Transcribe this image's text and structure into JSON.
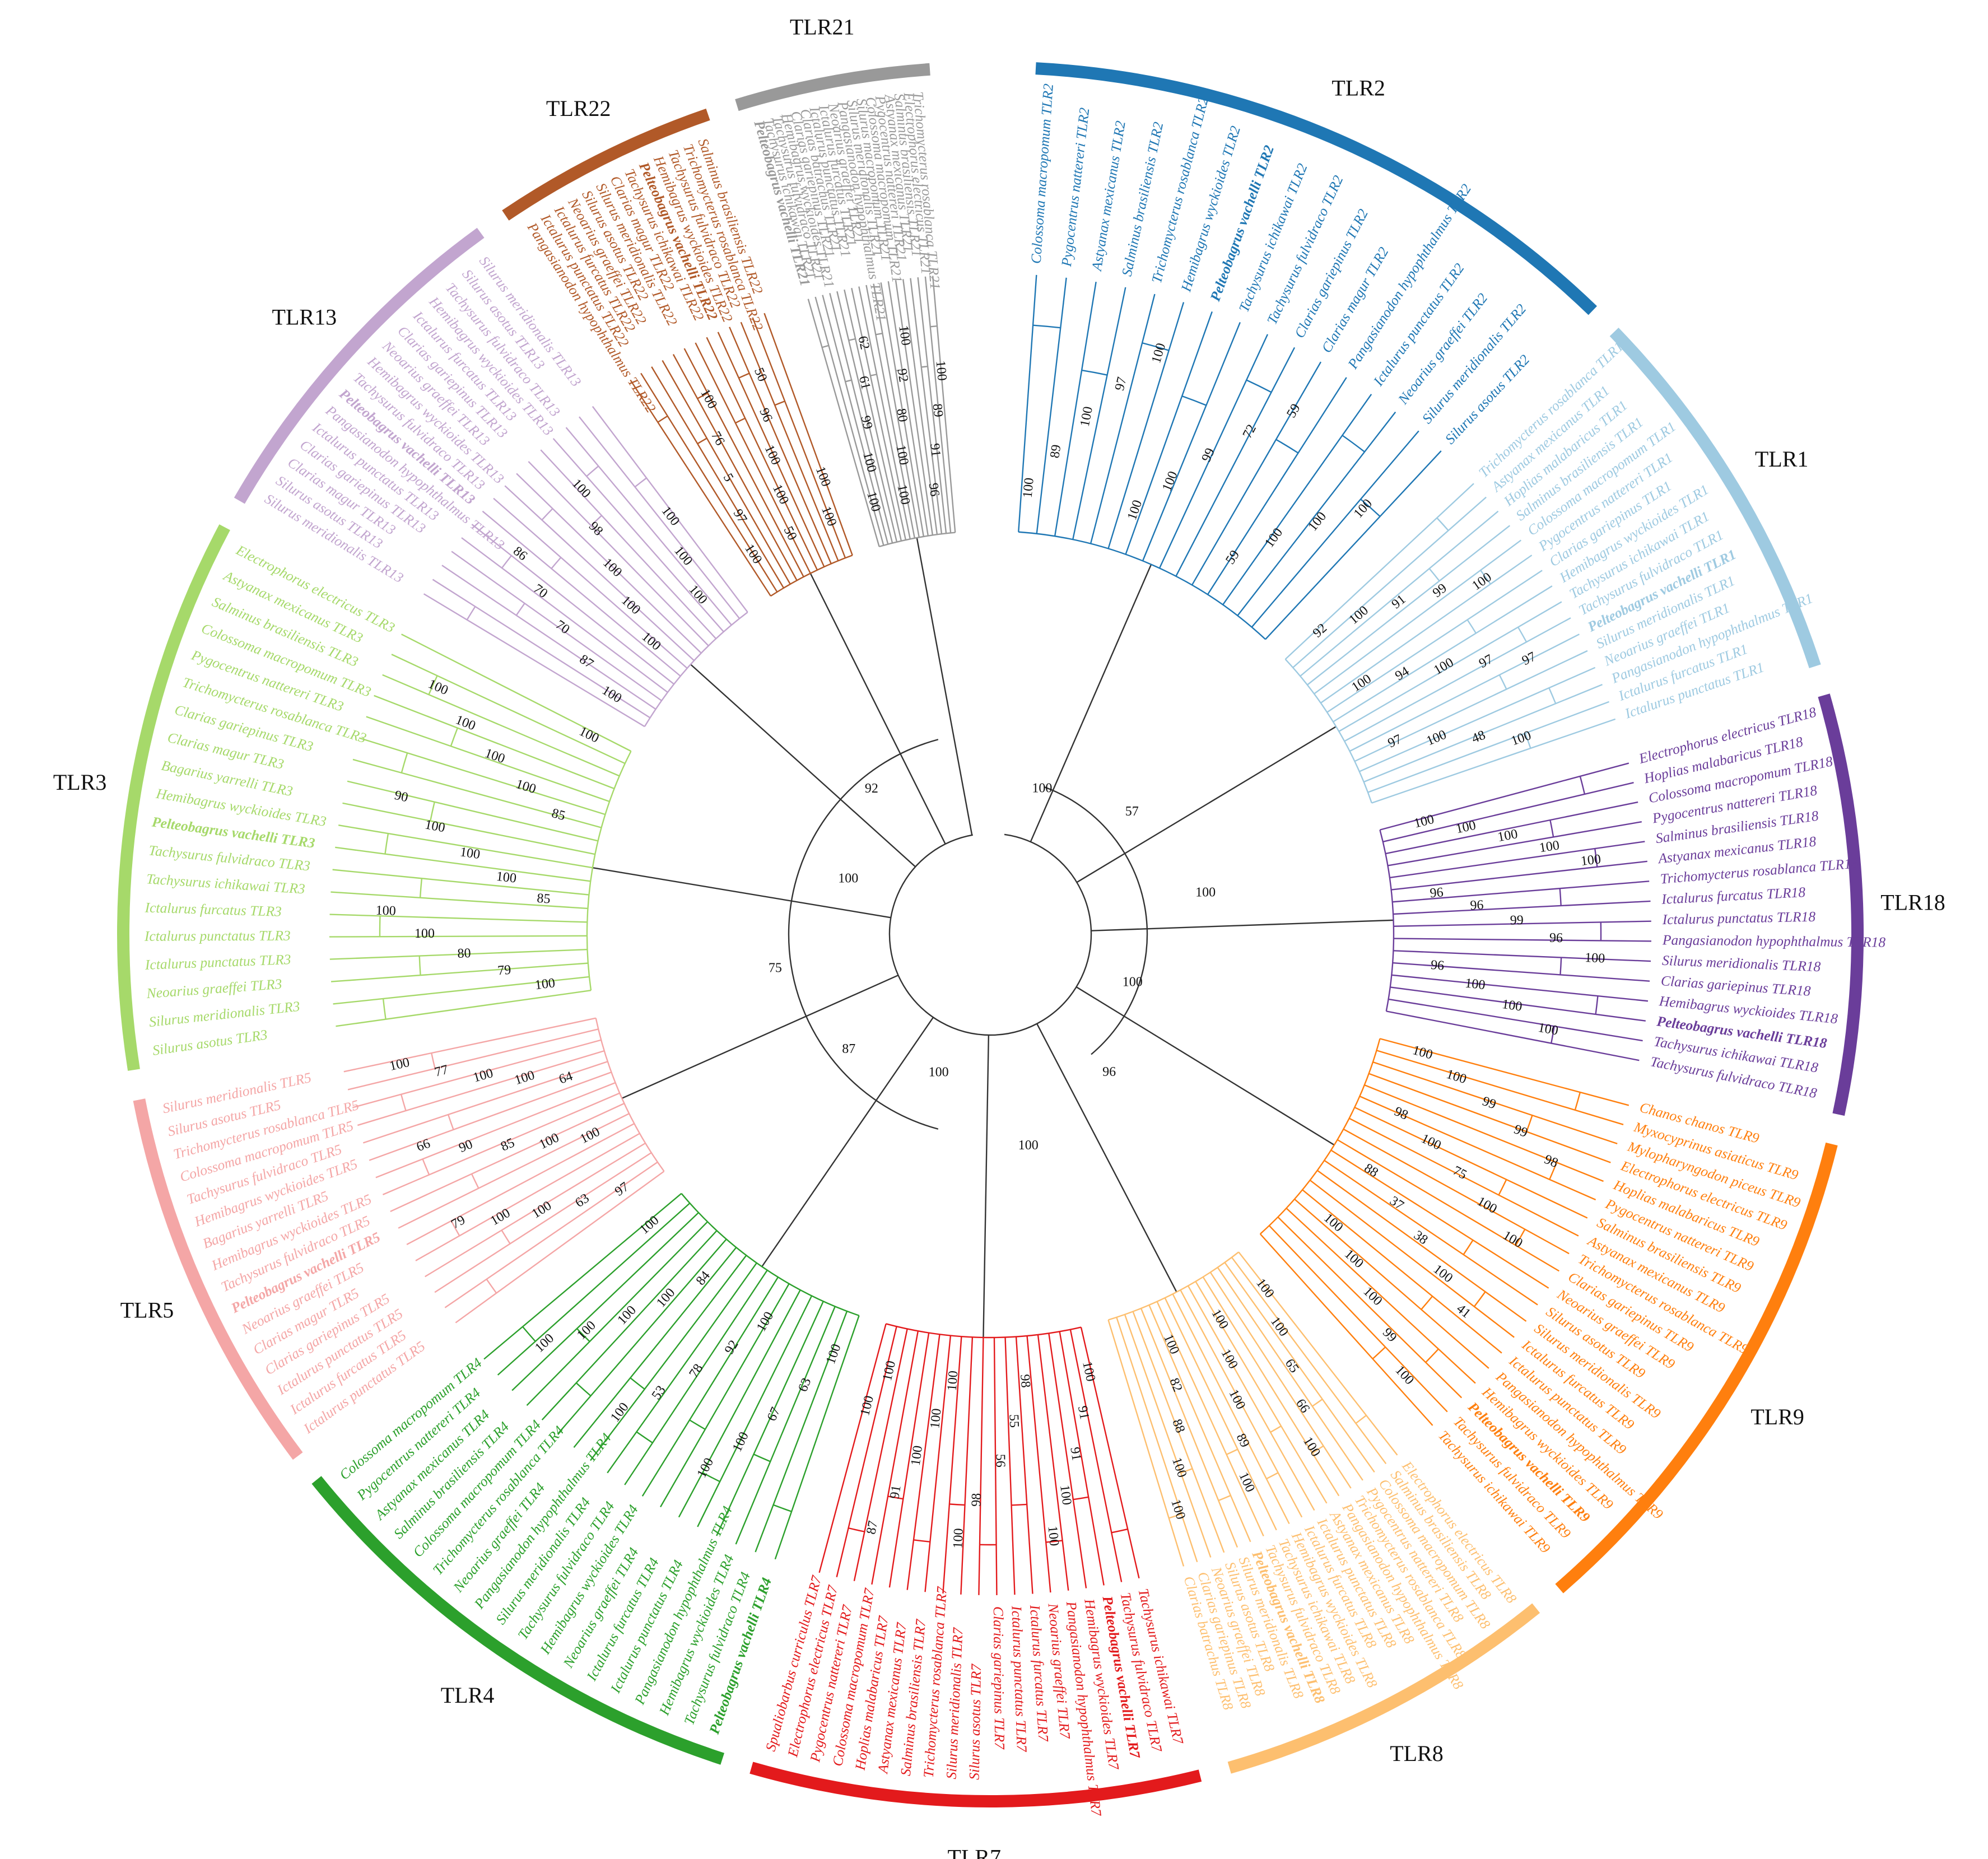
{
  "clades": [
    {
      "id": "tlr2",
      "label": "TLR2",
      "color": "#1f77b4",
      "members": [
        "Colossoma macropomum TLR2",
        "Pygocentrus nattereri TLR2",
        "Astyanax mexicanus TLR2",
        "Salminus brasiliensis TLR2",
        "Trichomycterus rosablanca TLR2",
        "Hemibagrus wyckioides TLR2",
        "Pelteobagrus vachelli TLR2",
        "Tachysurus ichikawai TLR2",
        "Tachysurus fulvidraco TLR2",
        "Clarias gariepinus TLR2",
        "Clarias magur TLR2",
        "Pangasianodon hypophthalmus TLR2",
        "Ictalurus punctatus TLR2",
        "Neoarius graeffei TLR2",
        "Silurus meridionalis TLR2",
        "Silurus asotus TLR2"
      ]
    },
    {
      "id": "tlr1",
      "label": "TLR1",
      "color": "#9ecae1",
      "members": [
        "Trichomycterus rosablanca TLR1",
        "Astyanax mexicanus TLR1",
        "Hoplias malabaricus TLR1",
        "Salminus brasiliensis TLR1",
        "Colossoma macropomum TLR1",
        "Pygocentrus nattereri TLR1",
        "Clarias gariepinus TLR1",
        "Hemibagrus wyckioides TLR1",
        "Tachysurus ichikawai TLR1",
        "Tachysurus fulvidraco TLR1",
        "Pelteobagrus vachelli TLR1",
        "Silurus meridionalis TLR1",
        "Neoarius graeffei TLR1",
        "Pangasianodon hypophthalmus TLR1",
        "Ictalurus furcatus TLR1",
        "Ictalurus punctatus TLR1"
      ]
    },
    {
      "id": "tlr18",
      "label": "TLR18",
      "color": "#6a3d9a",
      "members": [
        "Electrophorus electricus TLR18",
        "Hoplias malabaricus TLR18",
        "Colossoma macropomum TLR18",
        "Pygocentrus nattereri TLR18",
        "Salminus brasiliensis TLR18",
        "Astyanax mexicanus TLR18",
        "Trichomycterus rosablanca TLR18",
        "Ictalurus furcatus TLR18",
        "Ictalurus punctatus TLR18",
        "Pangasianodon hypophthalmus TLR18",
        "Silurus meridionalis TLR18",
        "Clarias gariepinus TLR18",
        "Hemibagrus wyckioides TLR18",
        "Pelteobagrus vachelli TLR18",
        "Tachysurus ichikawai TLR18",
        "Tachysurus fulvidraco TLR18"
      ]
    },
    {
      "id": "tlr9",
      "label": "TLR9",
      "color": "#ff7f0e",
      "members": [
        "Chanos chanos TLR9",
        "Myxocyprinus asiaticus TLR9",
        "Mylopharyngodon piceus TLR9",
        "Electrophorus electricus TLR9",
        "Hoplias malabaricus TLR9",
        "Pygocentrus nattereri TLR9",
        "Salminus brasiliensis TLR9",
        "Astyanax mexicanus TLR9",
        "Trichomycterus rosablanca TLR9",
        "Clarias gariepinus TLR9",
        "Neoarius graeffei TLR9",
        "Silurus asotus TLR9",
        "Silurus meridionalis TLR9",
        "Ictalurus furcatus TLR9",
        "Ictalurus punctatus TLR9",
        "Pangasianodon hypophthalmus TLR9",
        "Hemibagrus wyckioides TLR9",
        "Pelteobagrus vachelli TLR9",
        "Tachysurus fulvidraco TLR9",
        "Tachysurus ichikawai TLR9"
      ]
    },
    {
      "id": "tlr8",
      "label": "TLR8",
      "color": "#fdbf6f",
      "members": [
        "Electrophorus electricus TLR8",
        "Salminus brasiliensis TLR8",
        "Colossoma macropomum TLR8",
        "Pygocentrus nattereri TLR8",
        "Trichomycterus rosablanca TLR8",
        "Pangasianodon hypophthalmus TLR8",
        "Astyanax mexicanus TLR8",
        "Ictalurus punctatus TLR8",
        "Ictalurus furcatus TLR8",
        "Hemibagrus wyckioides TLR8",
        "Tachysurus ichikawai TLR8",
        "Tachysurus fulvidraco TLR8",
        "Pelteobagrus vachelli TLR8",
        "Silurus meridionalis TLR8",
        "Silurus asotus TLR8",
        "Neoarius graeffei TLR8",
        "Clarias gariepinus TLR8",
        "Clarias batrachus TLR8"
      ]
    },
    {
      "id": "tlr7",
      "label": "TLR7",
      "color": "#e31a1c",
      "members": [
        "Tachysurus ichikawai TLR7",
        "Tachysurus fulvidraco TLR7",
        "Pelteobagrus vachelli TLR7",
        "Hemibagrus wyckioides TLR7",
        "Pangasianodon hypophthalmus TLR7",
        "Neoarius graeffei TLR7",
        "Ictalurus furcatus TLR7",
        "Ictalurus punctatus TLR7",
        "Clarias gariepinus TLR7",
        "Silurus asotus TLR7",
        "Silurus meridionalis TLR7",
        "Trichomycterus rosablanca TLR7",
        "Salminus brasiliensis TLR7",
        "Astyanax mexicanus TLR7",
        "Hoplias malabaricus TLR7",
        "Colossoma macropomum TLR7",
        "Pygocentrus nattereri TLR7",
        "Electrophorus electricus TLR7",
        "Spualiobarbus curriculus TLR7"
      ]
    },
    {
      "id": "tlr4",
      "label": "TLR4",
      "color": "#2ca02c",
      "members": [
        "Pelteobagrus vachelli TLR4",
        "Tachysurus fulvidraco TLR4",
        "Hemibagrus wyckioides TLR4",
        "Pangasianodon hypophthalmus TLR4",
        "Ictalurus punctatus TLR4",
        "Ictalurus furcatus TLR4",
        "Neoarius graeffei TLR4",
        "Hemibagrus wyckioides TLR4",
        "Tachysurus fulvidraco TLR4",
        "Silurus meridionalis TLR4",
        "Pangasianodon hypophthalmus TLR4",
        "Neoarius graeffei TLR4",
        "Trichomycterus rosablanca TLR4",
        "Colossoma macropomum TLR4",
        "Salminus brasiliensis TLR4",
        "Astyanax mexicanus TLR4",
        "Pygocentrus nattereri TLR4",
        "Colossoma macropomum TLR4"
      ]
    },
    {
      "id": "tlr5",
      "label": "TLR5",
      "color": "#f4a6a6",
      "members": [
        "Ictalurus punctatus TLR5",
        "Ictalurus furcatus TLR5",
        "Ictalurus punctatus TLR5",
        "Clarias gariepinus TLR5",
        "Clarias magur TLR5",
        "Neoarius graeffei TLR5",
        "Pelteobagrus vachelli TLR5",
        "Tachysurus fulvidraco TLR5",
        "Hemibagrus wyckioides TLR5",
        "Bagarius yarrelli TLR5",
        "Hemibagrus wyckioides TLR5",
        "Tachysurus fulvidraco TLR5",
        "Colossoma macropomum TLR5",
        "Trichomycterus rosablanca TLR5",
        "Silurus asotus TLR5",
        "Silurus meridionalis TLR5"
      ]
    },
    {
      "id": "tlr3",
      "label": "TLR3",
      "color": "#a6d96a",
      "members": [
        "Silurus asotus TLR3",
        "Silurus meridionalis TLR3",
        "Neoarius graeffei TLR3",
        "Ictalurus punctatus TLR3",
        "Ictalurus punctatus TLR3",
        "Ictalurus furcatus TLR3",
        "Tachysurus ichikawai TLR3",
        "Tachysurus fulvidraco TLR3",
        "Pelteobagrus vachelli TLR3",
        "Hemibagrus wyckioides TLR3",
        "Bagarius yarrelli TLR3",
        "Clarias magur TLR3",
        "Clarias gariepinus TLR3",
        "Trichomycterus rosablanca TLR3",
        "Pygocentrus nattereri TLR3",
        "Colossoma macropomum TLR3",
        "Salminus brasiliensis TLR3",
        "Astyanax mexicanus TLR3",
        "Electrophorus electricus TLR3"
      ]
    },
    {
      "id": "tlr13",
      "label": "TLR13",
      "color": "#c2a5cf",
      "members": [
        "Silurus meridionalis TLR13",
        "Silurus asotus TLR13",
        "Clarias magur TLR13",
        "Clarias gariepinus TLR13",
        "Ictalurus punctatus TLR13",
        "Pangasianodon hypophthalmus TLR13",
        "Pelteobagrus vachelli TLR13",
        "Tachysurus fulvidraco TLR13",
        "Hemibagrus wyckioides TLR13",
        "Neoarius graeffei TLR13",
        "Clarias gariepinus TLR13",
        "Ictalurus furcatus TLR13",
        "Hemibagrus wyckioides TLR13",
        "Tachysurus fulvidraco TLR13",
        "Silurus asotus TLR13",
        "Silurus meridionalis TLR13"
      ]
    },
    {
      "id": "tlr22",
      "label": "TLR22",
      "color": "#b15928",
      "members": [
        "Pangasianodon hypophthalmus TLR22",
        "Ictalurus punctatus TLR22",
        "Ictalurus furcatus TLR22",
        "Neoarius graeffei TLR22",
        "Silurus asotus TLR22",
        "Silurus meridionalis TLR22",
        "Clarias magur TLR22",
        "Tachysurus ichikawai TLR22",
        "Pelteobagrus vachelli TLR22",
        "Hemibagrus wyckioides TLR22",
        "Tachysurus fulvidraco TLR22",
        "Trichomycterus rosablanca TLR22",
        "Salminus brasiliensis TLR22"
      ]
    },
    {
      "id": "tlr21",
      "label": "TLR21",
      "color": "#999999",
      "members": [
        "Pelteobagrus vachelli TLR21",
        "Tachysurus ichikawai TLR21",
        "Tachysurus fulvidraco TLR21",
        "Hemibagrus wyckioides TLR21",
        "Clarias gariepinus TLR21",
        "Clarias batrachus TLR21",
        "Ictalurus punctatus TLR21",
        "Ictalurus furcatus TLR21",
        "Neoarius graeffei TLR21",
        "Pangasianodon hypophthalmus TLR21",
        "Silurus meridionalis TLR21",
        "Silurus macropomum TLR21",
        "Colossoma macropomum TLR21",
        "Pygocentrus nattereri TLR21",
        "Astyanax mexicanus TLR21",
        "Salminus brasiliensis TLR21",
        "Electrophorus electricus TLR21",
        "Trichomycterus rosablanca TLR21"
      ]
    }
  ],
  "highlight_species": "Pelteobagrus vachelli",
  "support_values": {
    "tlr2": [
      "100",
      "89",
      "100",
      "97",
      "100",
      "100",
      "100",
      "99",
      "72",
      "59",
      "59",
      "100",
      "100",
      "100"
    ],
    "tlr1": [
      "92",
      "100",
      "91",
      "99",
      "100",
      "100",
      "94",
      "100",
      "97",
      "97",
      "97",
      "100",
      "48",
      "100"
    ],
    "tlr18": [
      "100",
      "100",
      "100",
      "100",
      "100",
      "96",
      "96",
      "99",
      "96",
      "100",
      "96",
      "100",
      "100",
      "100"
    ],
    "tlr9": [
      "100",
      "100",
      "99",
      "99",
      "98",
      "98",
      "100",
      "75",
      "100",
      "100",
      "88",
      "37",
      "38",
      "100",
      "41",
      "100",
      "100",
      "100",
      "99",
      "100"
    ],
    "tlr8": [
      "100",
      "100",
      "65",
      "66",
      "100",
      "100",
      "100",
      "100",
      "89",
      "100",
      "100",
      "82",
      "88",
      "100",
      "100"
    ],
    "tlr7": [
      "100",
      "91",
      "91",
      "100",
      "100",
      "98",
      "55",
      "56",
      "98",
      "100",
      "100",
      "100",
      "100",
      "91",
      "87",
      "100",
      "100"
    ],
    "tlr4": [
      "100",
      "63",
      "67",
      "100",
      "100",
      "100",
      "92",
      "78",
      "53",
      "100",
      "84",
      "100",
      "100",
      "100",
      "100",
      "100"
    ],
    "tlr5": [
      "97",
      "63",
      "100",
      "100",
      "79",
      "100",
      "100",
      "85",
      "90",
      "66",
      "64",
      "100",
      "100",
      "77",
      "100"
    ],
    "tlr3": [
      "100",
      "79",
      "80",
      "100",
      "100",
      "85",
      "100",
      "100",
      "100",
      "90",
      "85",
      "100",
      "100",
      "100",
      "100",
      "100"
    ],
    "tlr13": [
      "100",
      "87",
      "70",
      "70",
      "86",
      "100",
      "100",
      "100",
      "98",
      "100",
      "100",
      "100",
      "100"
    ],
    "tlr22": [
      "100",
      "97",
      "5",
      "76",
      "100",
      "50",
      "100",
      "100",
      "96",
      "50",
      "100",
      "100"
    ],
    "tlr21": [
      "100",
      "100",
      "99",
      "61",
      "62",
      "100",
      "100",
      "80",
      "92",
      "100",
      "96",
      "91",
      "89",
      "100"
    ],
    "backbone": [
      "100",
      "57",
      "100",
      "100",
      "96",
      "100",
      "100",
      "87",
      "75",
      "100",
      "92"
    ]
  }
}
